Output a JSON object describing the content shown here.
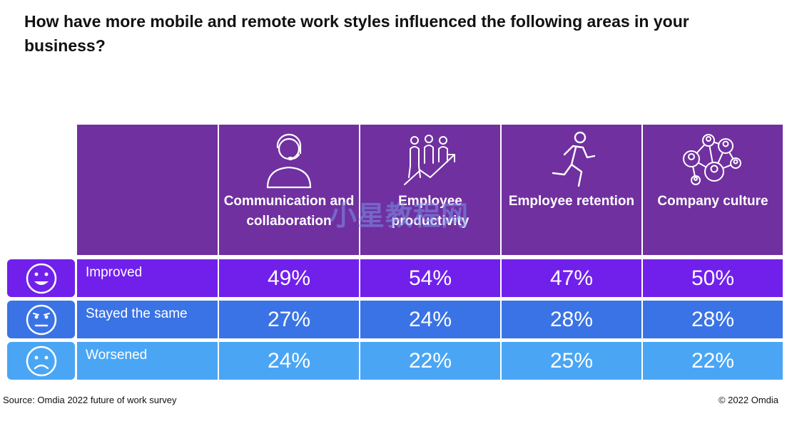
{
  "title": "How have more mobile and remote work styles influenced the following areas in your business?",
  "chart_data": {
    "type": "table",
    "title": "How have more mobile and remote work styles influenced the following areas in your business?",
    "categories": [
      "Communication and collaboration",
      "Employee productivity",
      "Employee retention",
      "Company culture"
    ],
    "series": [
      {
        "name": "Improved",
        "values": [
          49,
          54,
          47,
          50
        ]
      },
      {
        "name": "Stayed the same",
        "values": [
          27,
          24,
          28,
          28
        ]
      },
      {
        "name": "Worsened",
        "values": [
          24,
          22,
          25,
          22
        ]
      }
    ],
    "unit": "%"
  },
  "columns": [
    {
      "label": "Communication and collaboration",
      "icon": "headset-person-icon"
    },
    {
      "label": "Employee productivity",
      "icon": "team-growth-arrow-icon"
    },
    {
      "label": "Employee retention",
      "icon": "running-person-icon"
    },
    {
      "label": "Company culture",
      "icon": "people-network-icon"
    }
  ],
  "rows": [
    {
      "label": "Improved",
      "icon": "happy-face-icon",
      "color": "#7120ec",
      "emoji_color": "#7120ec",
      "values": [
        "49%",
        "54%",
        "47%",
        "50%"
      ]
    },
    {
      "label": "Stayed the same",
      "icon": "neutral-face-icon",
      "color": "#3a73e5",
      "emoji_color": "#3a73e5",
      "values": [
        "27%",
        "24%",
        "28%",
        "28%"
      ]
    },
    {
      "label": "Worsened",
      "icon": "sad-face-icon",
      "color": "#4aa6f5",
      "emoji_color": "#4aa6f5",
      "values": [
        "24%",
        "22%",
        "25%",
        "22%"
      ]
    }
  ],
  "header_color": "#7030a0",
  "watermark": "小星教程网",
  "footer": {
    "source": "Source: Omdia 2022 future of work survey",
    "copyright": "© 2022 Omdia"
  }
}
